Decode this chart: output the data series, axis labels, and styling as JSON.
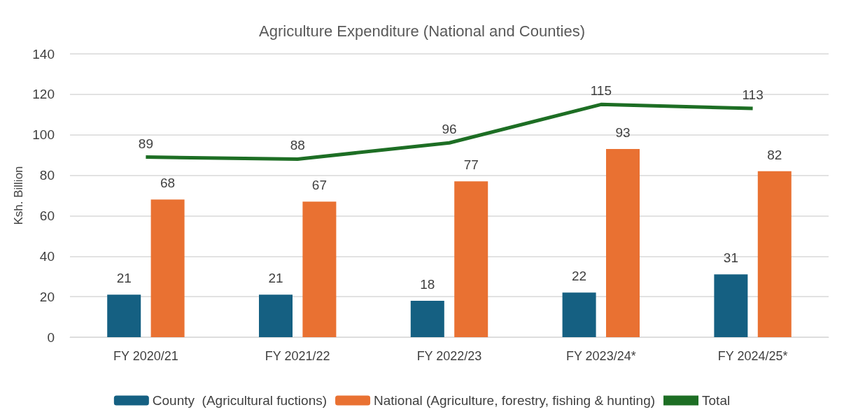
{
  "chart_data": {
    "type": "bar",
    "title": "Agriculture Expenditure (National and Counties)",
    "ylabel": "Ksh. Billion",
    "categories": [
      "FY 2020/21",
      "FY 2021/22",
      "FY 2022/23",
      "FY 2023/24*",
      "FY 2024/25*"
    ],
    "series": [
      {
        "name": "County  (Agricultural fuctions)",
        "color": "#156082",
        "values": [
          21,
          21,
          18,
          22,
          31
        ]
      },
      {
        "name": "National (Agriculture, forestry, fishing & hunting)",
        "color": "#e97132",
        "values": [
          68,
          67,
          77,
          93,
          82
        ]
      },
      {
        "name": "Total",
        "type": "line",
        "color": "#1d6e24",
        "values": [
          89,
          88,
          96,
          115,
          113
        ]
      }
    ],
    "ylim": [
      0,
      140
    ],
    "yticks": [
      0,
      20,
      40,
      60,
      80,
      100,
      120,
      140
    ],
    "grid": "y",
    "legend": "bottom",
    "data_labels": true,
    "marker": "none"
  }
}
